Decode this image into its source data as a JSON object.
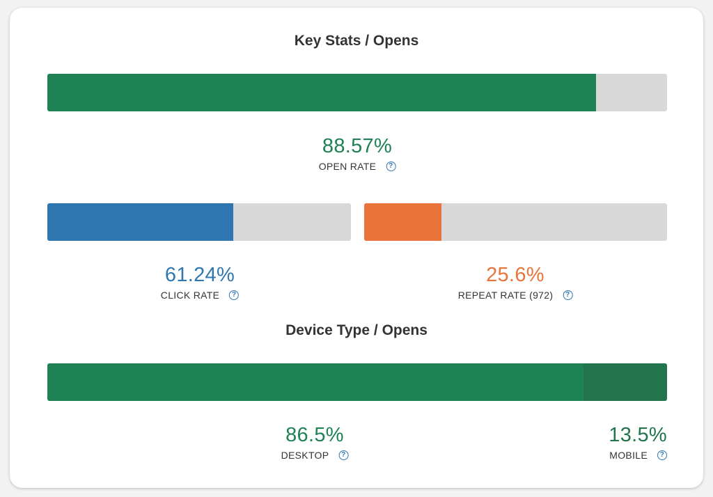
{
  "key_stats": {
    "title": "Key Stats / Opens",
    "open_rate": {
      "value": "88.57%",
      "label": "OPEN RATE",
      "fraction": 0.8857,
      "color": "#1e8255"
    },
    "click_rate": {
      "value": "61.24%",
      "label": "CLICK RATE",
      "fraction": 0.6124,
      "color": "#2f77b0"
    },
    "repeat_rate": {
      "value": "25.6%",
      "label": "REPEAT RATE (972)",
      "fraction": 0.256,
      "color": "#e8743b"
    }
  },
  "device_type": {
    "title": "Device Type / Opens",
    "desktop": {
      "value": "86.5%",
      "label": "DESKTOP",
      "fraction": 0.865,
      "color": "#1e8255"
    },
    "mobile": {
      "value": "13.5%",
      "label": "MOBILE",
      "fraction": 0.135,
      "color": "#22744c"
    }
  },
  "icons": {
    "help": "question-circle",
    "help_glyph": "?"
  },
  "colors": {
    "track": "#d8d8d8",
    "label_text": "#333333",
    "help_icon": "#2f75b5"
  }
}
